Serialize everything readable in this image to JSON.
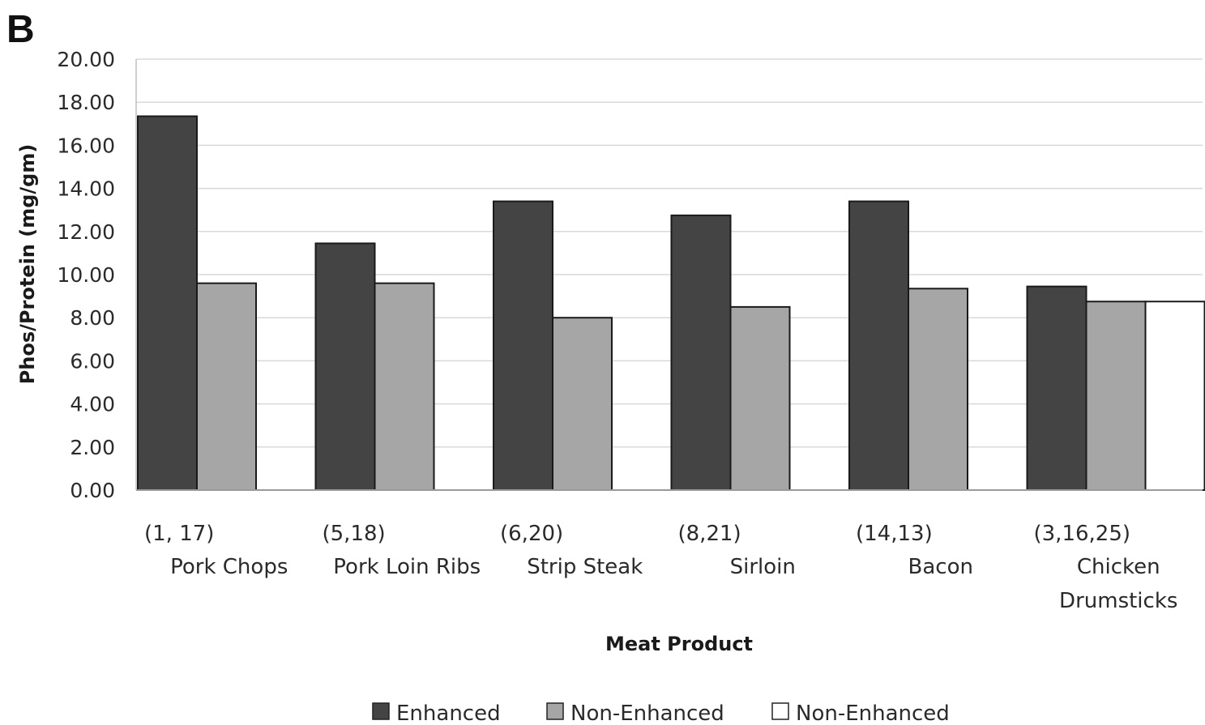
{
  "panel_label": "B",
  "colors": {
    "enhanced": "#444444",
    "non_enhanced_gray": "#a6a6a6",
    "non_enhanced_white": "#ffffff",
    "gridline": "#d9d9d9",
    "bar_stroke": "#1a1a1a"
  },
  "chart_data": {
    "type": "bar",
    "title": "",
    "xlabel": "Meat Product",
    "ylabel": "Phos/Protein (mg/gm)",
    "ylim": [
      0,
      20
    ],
    "yticks": [
      "0.00",
      "2.00",
      "4.00",
      "6.00",
      "8.00",
      "10.00",
      "12.00",
      "14.00",
      "16.00",
      "18.00",
      "20.00"
    ],
    "grid": true,
    "legend_position": "bottom",
    "categories": [
      {
        "counts": "(1, 17)",
        "lines": [
          "Pork Chops"
        ]
      },
      {
        "counts": "(5,18)",
        "lines": [
          "Pork Loin Ribs"
        ]
      },
      {
        "counts": "(6,20)",
        "lines": [
          "Strip Steak"
        ]
      },
      {
        "counts": "(8,21)",
        "lines": [
          "Sirloin"
        ]
      },
      {
        "counts": "(14,13)",
        "lines": [
          "Bacon"
        ]
      },
      {
        "counts": "(3,16,25)",
        "lines": [
          "Chicken",
          "Drumsticks"
        ]
      }
    ],
    "series": [
      {
        "name": "Enhanced",
        "color": "#444444",
        "values": [
          17.35,
          11.45,
          13.4,
          12.75,
          13.4,
          9.45
        ]
      },
      {
        "name": "Non-Enhanced",
        "color": "#a6a6a6",
        "values": [
          9.6,
          9.6,
          8.0,
          8.5,
          9.35,
          8.75
        ]
      },
      {
        "name": "Non-Enhanced",
        "color": "#ffffff",
        "values": [
          null,
          null,
          null,
          null,
          null,
          8.75
        ]
      }
    ]
  }
}
